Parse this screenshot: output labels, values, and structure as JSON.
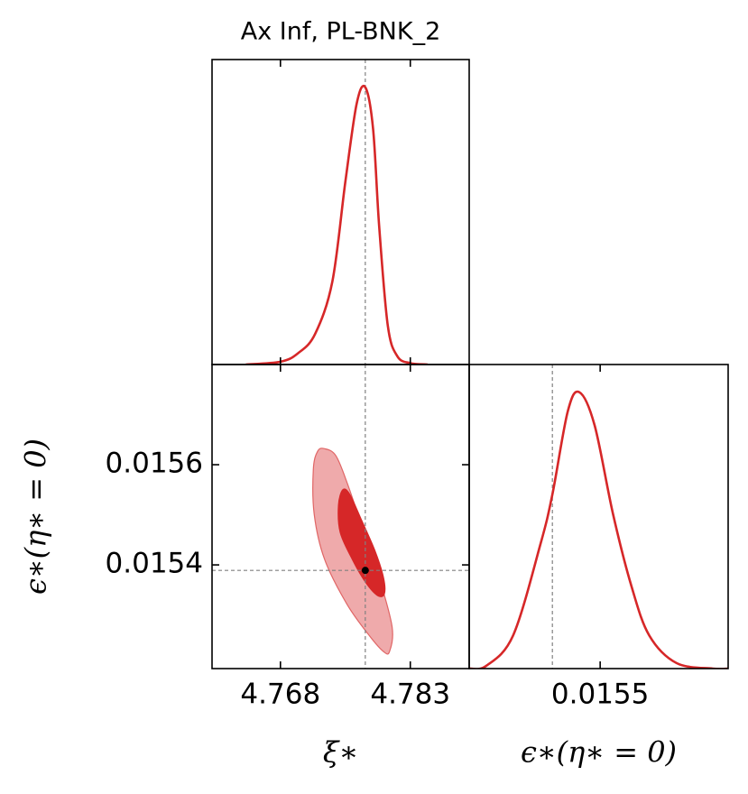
{
  "chart_data": [
    {
      "type": "line",
      "title": "Ax Inf, PL-BNK_2",
      "x": [
        4.764,
        4.768,
        4.77,
        4.772,
        4.774,
        4.7755,
        4.7768,
        4.7778,
        4.7787,
        4.7794,
        4.7804,
        4.7815,
        4.783,
        4.785
      ],
      "values": [
        0,
        0.01,
        0.04,
        0.11,
        0.3,
        0.66,
        0.94,
        1.0,
        0.85,
        0.5,
        0.14,
        0.03,
        0.005,
        0
      ],
      "color": "#d62728",
      "xlim": [
        4.7601,
        4.7898
      ],
      "ylim": [
        0,
        1.1
      ],
      "xticks": [
        4.768,
        4.783
      ],
      "reference_x": 4.7778
    },
    {
      "type": "contour",
      "xlabel": "ξ∗",
      "ylabel": "ϵ∗(η∗ = 0)",
      "xlim": [
        4.7601,
        4.7898
      ],
      "ylim": [
        0.015193,
        0.0158
      ],
      "xticks": [
        4.768,
        4.783
      ],
      "yticks": [
        0.0156,
        0.0154
      ],
      "series": [
        {
          "color": "#efaaab",
          "edge": "#e06666",
          "x": [
            4.7731,
            4.7744,
            4.7757,
            4.7773,
            4.7794,
            4.7809,
            4.7806,
            4.7799,
            4.7783,
            4.7757,
            4.7731,
            4.7719,
            4.7718,
            4.7723
          ],
          "y": [
            0.015632,
            0.015618,
            0.015564,
            0.015483,
            0.015375,
            0.015276,
            0.015227,
            0.015227,
            0.015258,
            0.015321,
            0.015411,
            0.015501,
            0.015591,
            0.015627
          ]
        },
        {
          "color": "#d62728",
          "edge": "#d62728",
          "x": [
            4.7752,
            4.776,
            4.7773,
            4.7789,
            4.7799,
            4.78,
            4.7792,
            4.7778,
            4.7763,
            4.7749,
            4.7747
          ],
          "y": [
            0.01555,
            0.015541,
            0.015492,
            0.015429,
            0.015375,
            0.015342,
            0.015339,
            0.015366,
            0.015411,
            0.015465,
            0.015519
          ]
        }
      ],
      "point": [
        4.7778,
        0.015389
      ],
      "reference_x": 4.7778,
      "reference_y": 0.015389
    },
    {
      "type": "line",
      "xlabel": "ϵ∗(η∗ = 0)",
      "x": [
        0.015193,
        0.015233,
        0.015296,
        0.01536,
        0.015388,
        0.015424,
        0.015451,
        0.015487,
        0.01553,
        0.015573,
        0.015615,
        0.015679,
        0.015764,
        0.0158
      ],
      "values": [
        0,
        0.01,
        0.12,
        0.45,
        0.63,
        0.93,
        1.0,
        0.88,
        0.56,
        0.3,
        0.12,
        0.02,
        0,
        0
      ],
      "color": "#d62728",
      "xlim": [
        0.015193,
        0.0158
      ],
      "ylim": [
        0,
        1.1
      ],
      "xticks": [
        0.0155
      ],
      "reference_x": 0.015388
    }
  ]
}
